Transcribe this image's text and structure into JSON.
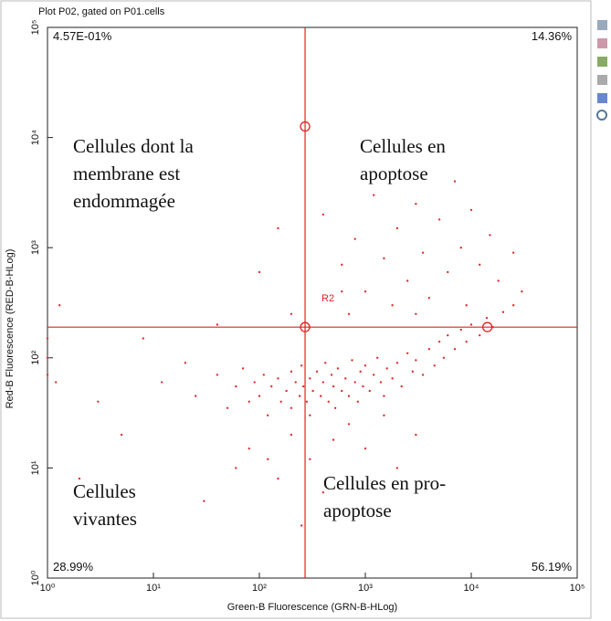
{
  "chart_data": {
    "type": "scatter",
    "title": "Plot P02, gated on P01.cells",
    "xlabel": "Green-B Fluorescence (GRN-B-HLog)",
    "ylabel": "Red-B Fluorescence (RED-B-HLog)",
    "xscale": "log",
    "yscale": "log",
    "xlim": [
      1,
      100000
    ],
    "ylim": [
      1,
      100000
    ],
    "xticks": [
      {
        "value": 1,
        "label": "10⁰"
      },
      {
        "value": 10,
        "label": "10¹"
      },
      {
        "value": 100,
        "label": "10²"
      },
      {
        "value": 1000,
        "label": "10³"
      },
      {
        "value": 10000,
        "label": "10⁴"
      },
      {
        "value": 100000,
        "label": "10⁵"
      }
    ],
    "yticks": [
      {
        "value": 1,
        "label": "10⁰"
      },
      {
        "value": 10,
        "label": "10¹"
      },
      {
        "value": 100,
        "label": "10²"
      },
      {
        "value": 1000,
        "label": "10³"
      },
      {
        "value": 10000,
        "label": "10⁴"
      },
      {
        "value": 100000,
        "label": "10⁵"
      }
    ],
    "quadrant": {
      "x": 270,
      "y": 190,
      "color": "#e02020",
      "region_label": "R2"
    },
    "handles": {
      "x": [
        270,
        270,
        14200
      ],
      "values": [
        12600,
        190,
        190
      ]
    },
    "quadrant_labels": {
      "top_left": "4.57E-01%",
      "top_right": "14.36%",
      "bottom_left": "28.99%",
      "bottom_right": "56.19%"
    },
    "annotations": {
      "top_left": [
        "Cellules dont la",
        "membrane est",
        "endommagée"
      ],
      "top_right": [
        "Cellules en",
        "apoptose"
      ],
      "bottom_left": [
        "Cellules",
        "vivantes"
      ],
      "bottom_right": [
        "Cellules en pro-",
        "apoptose"
      ]
    },
    "color": "#e03030",
    "x": [
      12,
      20,
      25,
      40,
      50,
      60,
      70,
      80,
      90,
      100,
      110,
      120,
      130,
      150,
      160,
      180,
      200,
      200,
      220,
      240,
      250,
      260,
      280,
      300,
      300,
      320,
      350,
      380,
      400,
      420,
      450,
      480,
      500,
      520,
      550,
      600,
      650,
      700,
      750,
      800,
      850,
      900,
      950,
      1000,
      1100,
      1200,
      1300,
      1400,
      1500,
      1600,
      1800,
      2000,
      2200,
      2500,
      2800,
      3000,
      3500,
      4000,
      4500,
      5000,
      5500,
      6000,
      7000,
      8000,
      9000,
      10000,
      12000,
      14000,
      16000,
      20000,
      25000,
      400,
      600,
      800,
      1000,
      1200,
      1500,
      2000,
      2500,
      3000,
      3500,
      4000,
      5000,
      6000,
      7000,
      8000,
      10000,
      12000,
      15000,
      18000,
      25000,
      30000,
      1800,
      700,
      3000,
      9000,
      600,
      30,
      80,
      150,
      200,
      300,
      400,
      500,
      700,
      1000,
      1500,
      2000,
      250,
      3000,
      120,
      60,
      3,
      1.2,
      1.3,
      8,
      40,
      100,
      150,
      200,
      2,
      5,
      1,
      1,
      1
    ],
    "values": [
      60,
      90,
      45,
      70,
      35,
      55,
      80,
      40,
      60,
      45,
      70,
      30,
      55,
      65,
      40,
      50,
      75,
      35,
      60,
      45,
      85,
      55,
      40,
      65,
      30,
      50,
      75,
      45,
      60,
      90,
      40,
      70,
      55,
      35,
      80,
      50,
      65,
      45,
      95,
      60,
      40,
      75,
      55,
      85,
      50,
      70,
      100,
      60,
      45,
      80,
      65,
      90,
      55,
      110,
      75,
      95,
      70,
      120,
      85,
      140,
      100,
      160,
      120,
      180,
      140,
      200,
      160,
      230,
      190,
      260,
      300,
      2000,
      700,
      1200,
      400,
      3000,
      800,
      1500,
      500,
      2500,
      900,
      350,
      1800,
      600,
      4000,
      1000,
      2200,
      700,
      1300,
      500,
      900,
      400,
      300,
      250,
      250,
      300,
      400,
      5,
      15,
      8,
      20,
      12,
      6,
      18,
      25,
      15,
      30,
      10,
      3,
      20,
      12,
      10,
      40,
      60,
      300,
      150,
      200,
      600,
      1500,
      250,
      8,
      20,
      100,
      150,
      70
    ]
  }
}
